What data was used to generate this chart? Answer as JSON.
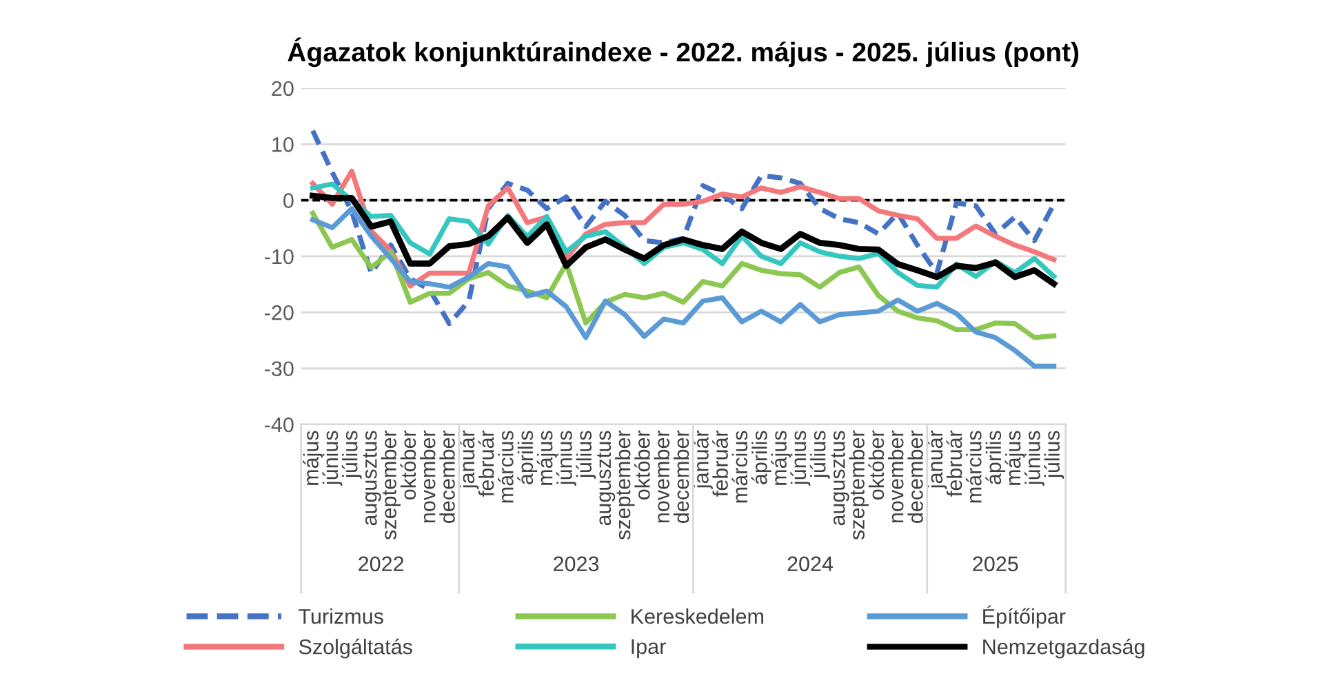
{
  "chart_data": {
    "type": "line",
    "title": "Ágazatok konjunktúraindexe - 2022. május - 2025. július (pont)",
    "categories": [
      "május",
      "június",
      "július",
      "augusztus",
      "szeptember",
      "október",
      "november",
      "december",
      "január",
      "február",
      "március",
      "április",
      "május",
      "június",
      "július",
      "augusztus",
      "szeptember",
      "október",
      "november",
      "december",
      "január",
      "február",
      "március",
      "április",
      "május",
      "június",
      "július",
      "augusztus",
      "szeptember",
      "október",
      "november",
      "december",
      "január",
      "február",
      "március",
      "április",
      "május",
      "június",
      "július"
    ],
    "annotations": [
      "2022",
      "2023",
      "2024",
      "2025"
    ],
    "series": [
      {
        "name": "Turizmus",
        "color": "#4472c4",
        "line_style": "dashed",
        "values": [
          12.4,
          5,
          -2,
          -13,
          -8,
          -14,
          -16,
          -22,
          -18,
          -1.5,
          3,
          1.8,
          -1.5,
          0.6,
          -4.7,
          -0.2,
          -2.7,
          -7.2,
          -7.6,
          -6.8,
          2.6,
          1,
          -1.5,
          4.4,
          4,
          3,
          -1.5,
          -3.3,
          -4,
          -6,
          -2.3,
          -8,
          -13,
          -0.5,
          -1,
          -6,
          -3,
          -7.2,
          -0.7
        ]
      },
      {
        "name": "Szolgáltatás",
        "color": "#f4777b",
        "values": [
          3,
          -0.7,
          5.2,
          -5.5,
          -9,
          -15.3,
          -13,
          -13,
          -13,
          -1,
          2.2,
          -4,
          -3,
          -10.4,
          -6,
          -4.3,
          -4,
          -4,
          -0.7,
          -0.7,
          -0.2,
          1.1,
          0.6,
          2.2,
          1.4,
          2.4,
          1.4,
          0.3,
          0.3,
          -1.9,
          -2.7,
          -3.3,
          -6.8,
          -6.8,
          -4.6,
          -6.4,
          -8,
          -9.2,
          -10.6
        ]
      },
      {
        "name": "Kereskedelem",
        "color": "#8cc751",
        "values": [
          -2.3,
          -8.4,
          -7,
          -12,
          -9.2,
          -18.2,
          -16.6,
          -16.6,
          -14,
          -12.9,
          -15.3,
          -16.2,
          -17.4,
          -11.3,
          -21.9,
          -18.2,
          -16.8,
          -17.4,
          -16.6,
          -18.2,
          -14.5,
          -15.3,
          -11.3,
          -12.5,
          -13.1,
          -13.3,
          -15.5,
          -12.9,
          -11.9,
          -17,
          -19.8,
          -21,
          -21.5,
          -23.1,
          -23.1,
          -21.9,
          -22,
          -24.5,
          -24.2
        ]
      },
      {
        "name": "Ipar",
        "color": "#36c6c0",
        "values": [
          2.2,
          2.9,
          0,
          -2.9,
          -2.7,
          -7.6,
          -9.6,
          -3.3,
          -3.8,
          -7.8,
          -2.7,
          -6.5,
          -2.9,
          -9.2,
          -6.4,
          -5.6,
          -8.4,
          -11.3,
          -8.4,
          -7.6,
          -8.8,
          -11.3,
          -6.4,
          -10,
          -11.3,
          -7.6,
          -9.2,
          -10,
          -10.4,
          -9.5,
          -12.9,
          -15.2,
          -15.5,
          -11.4,
          -13.6,
          -10.9,
          -12.9,
          -10.4,
          -13.6
        ]
      },
      {
        "name": "Építőipar",
        "color": "#5b9bd5",
        "values": [
          -3.5,
          -4.9,
          -1.5,
          -6.4,
          -10.4,
          -14.5,
          -14.9,
          -15.5,
          -13.7,
          -11.3,
          -11.9,
          -17.1,
          -16.2,
          -19,
          -24.5,
          -18,
          -20.4,
          -24.3,
          -21.2,
          -21.9,
          -18,
          -17.4,
          -21.7,
          -19.8,
          -21.7,
          -18.6,
          -21.7,
          -20.4,
          -20.1,
          -19.8,
          -17.8,
          -19.8,
          -18.4,
          -20.2,
          -23.5,
          -24.5,
          -26.8,
          -29.6,
          -29.6
        ]
      },
      {
        "name": "Nemzetgazdaság",
        "color": "#000000",
        "values": [
          0.8,
          0.4,
          0.4,
          -4.7,
          -3.8,
          -11.3,
          -11.3,
          -8.2,
          -7.8,
          -6.4,
          -3.1,
          -7.6,
          -4.3,
          -11.7,
          -8.4,
          -7,
          -8.8,
          -10.4,
          -8,
          -7,
          -8,
          -8.7,
          -5.6,
          -7.6,
          -8.7,
          -6,
          -7.6,
          -8,
          -8.7,
          -8.8,
          -11.4,
          -12.5,
          -13.7,
          -11.7,
          -12.1,
          -11.1,
          -13.7,
          -12.5,
          -14.9
        ]
      }
    ],
    "ylim": [
      -40,
      20
    ],
    "yticks": [
      -40,
      -30,
      -20,
      -10,
      0,
      10,
      20
    ],
    "ref_lines": [
      {
        "axis": "y",
        "value": 0,
        "color": "#000000",
        "line_style": "dashed"
      }
    ],
    "grid": "y",
    "legend": "bottom",
    "marker": "none"
  }
}
